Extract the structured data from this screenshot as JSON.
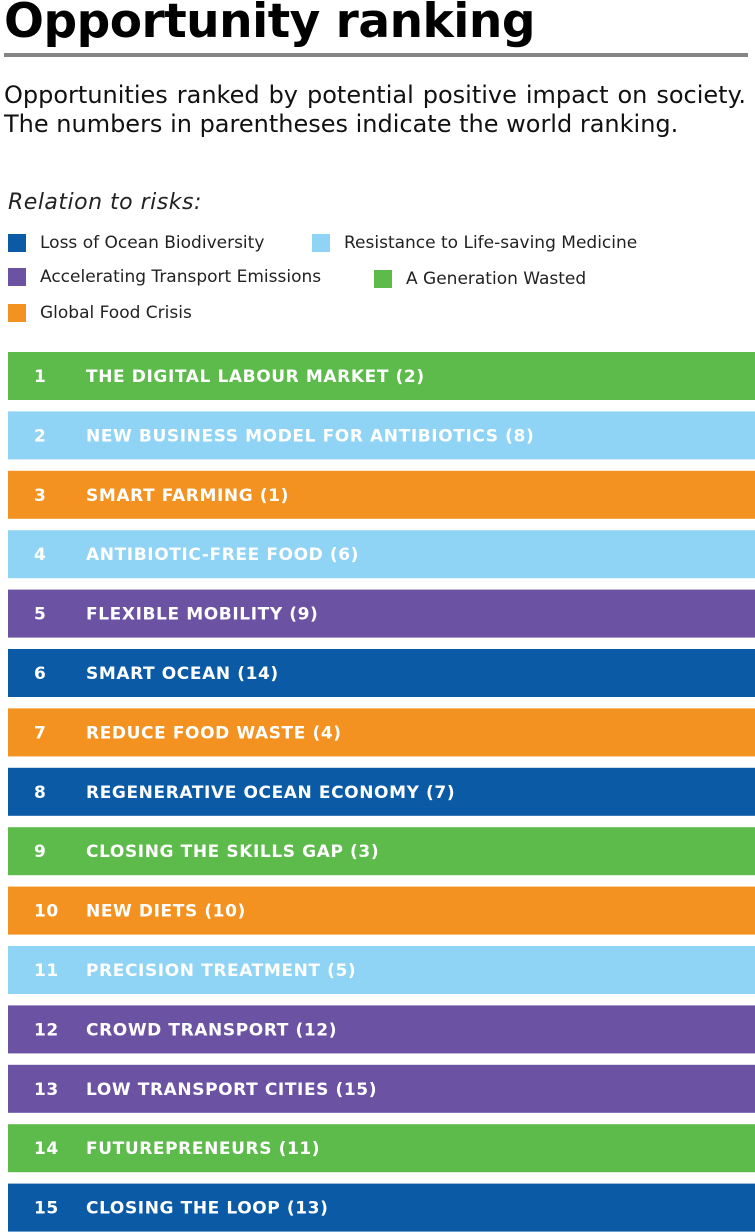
{
  "title": "Opportunity ranking",
  "description": "Opportunities ranked by potential positive impact on society. The numbers in parentheses indicate the world ranking.",
  "legend": {
    "title": "Relation to risks:",
    "items": [
      {
        "label": "Loss of Ocean Biodiversity",
        "color": "#0b5aa6"
      },
      {
        "label": "Resistance to Life-saving Medicine",
        "color": "#8fd3f5"
      },
      {
        "label": "Accelerating Transport Emissions",
        "color": "#6b52a3"
      },
      {
        "label": "A Generation Wasted",
        "color": "#5dbb4b"
      },
      {
        "label": "Global Food Crisis",
        "color": "#f39220"
      }
    ]
  },
  "chart_data": {
    "type": "table",
    "columns": [
      "rank",
      "opportunity",
      "world_rank",
      "risk"
    ],
    "rows": [
      {
        "rank": "1",
        "label": "THE DIGITAL LABOUR MARKET (2)",
        "world_rank": 2,
        "risk": "A Generation Wasted",
        "color": "#5dbb4b"
      },
      {
        "rank": "2",
        "label": "NEW BUSINESS MODEL FOR ANTIBIOTICS (8)",
        "world_rank": 8,
        "risk": "Resistance to Life-saving Medicine",
        "color": "#8fd3f5"
      },
      {
        "rank": "3",
        "label": "SMART FARMING (1)",
        "world_rank": 1,
        "risk": "Global Food Crisis",
        "color": "#f39220"
      },
      {
        "rank": "4",
        "label": "ANTIBIOTIC-FREE FOOD (6)",
        "world_rank": 6,
        "risk": "Resistance to Life-saving Medicine",
        "color": "#8fd3f5"
      },
      {
        "rank": "5",
        "label": "FLEXIBLE MOBILITY (9)",
        "world_rank": 9,
        "risk": "Accelerating Transport Emissions",
        "color": "#6b52a3"
      },
      {
        "rank": "6",
        "label": "SMART OCEAN (14)",
        "world_rank": 14,
        "risk": "Loss of Ocean Biodiversity",
        "color": "#0b5aa6"
      },
      {
        "rank": "7",
        "label": "REDUCE FOOD WASTE (4)",
        "world_rank": 4,
        "risk": "Global Food Crisis",
        "color": "#f39220"
      },
      {
        "rank": "8",
        "label": "REGENERATIVE OCEAN ECONOMY (7)",
        "world_rank": 7,
        "risk": "Loss of Ocean Biodiversity",
        "color": "#0b5aa6"
      },
      {
        "rank": "9",
        "label": "CLOSING THE SKILLS GAP (3)",
        "world_rank": 3,
        "risk": "A Generation Wasted",
        "color": "#5dbb4b"
      },
      {
        "rank": "10",
        "label": "NEW DIETS (10)",
        "world_rank": 10,
        "risk": "Global Food Crisis",
        "color": "#f39220"
      },
      {
        "rank": "11",
        "label": "PRECISION TREATMENT (5)",
        "world_rank": 5,
        "risk": "Resistance to Life-saving Medicine",
        "color": "#8fd3f5"
      },
      {
        "rank": "12",
        "label": "CROWD TRANSPORT (12)",
        "world_rank": 12,
        "risk": "Accelerating Transport Emissions",
        "color": "#6b52a3"
      },
      {
        "rank": "13",
        "label": "LOW TRANSPORT CITIES (15)",
        "world_rank": 15,
        "risk": "Accelerating Transport Emissions",
        "color": "#6b52a3"
      },
      {
        "rank": "14",
        "label": "FUTUREPRENEURS (11)",
        "world_rank": 11,
        "risk": "A Generation Wasted",
        "color": "#5dbb4b"
      },
      {
        "rank": "15",
        "label": "CLOSING THE LOOP (13)",
        "world_rank": 13,
        "risk": "Loss of Ocean Biodiversity",
        "color": "#0b5aa6"
      }
    ]
  }
}
